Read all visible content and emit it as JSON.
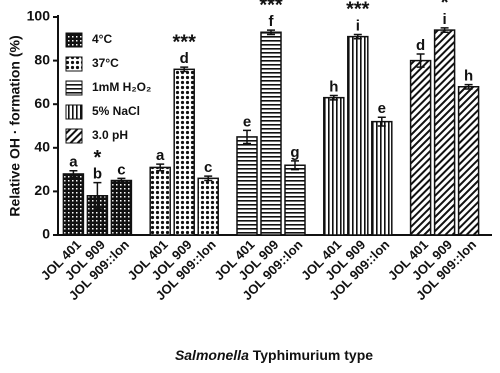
{
  "chart_data": {
    "type": "bar",
    "y_label": "Relative OH · formation (%)",
    "x_label": {
      "italic": "Salmonella",
      "rest": "Typhimurium  type"
    },
    "categories": [
      "JOL 401",
      "JOL 909",
      "JOL 909::lon"
    ],
    "ylim": [
      0,
      100
    ],
    "yticks": [
      0,
      20,
      40,
      60,
      80,
      100
    ],
    "legend": "top-left",
    "series": [
      {
        "name": "4°C",
        "pattern": "checker",
        "values": [
          28,
          18,
          25
        ],
        "errors": [
          1.5,
          6,
          1
        ],
        "letters": [
          "a",
          "b",
          "c"
        ],
        "significance": "*"
      },
      {
        "name": "37°C",
        "pattern": "dots",
        "values": [
          31,
          76,
          26
        ],
        "errors": [
          1.5,
          1,
          1
        ],
        "letters": [
          "a",
          "d",
          "c"
        ],
        "significance": "***"
      },
      {
        "name": "1mM H₂O₂",
        "pattern": "horizontal",
        "values": [
          45,
          93,
          32
        ],
        "errors": [
          3,
          1,
          2
        ],
        "letters": [
          "e",
          "f",
          "g"
        ],
        "significance": "***"
      },
      {
        "name": "5%  NaCl",
        "pattern": "vertical",
        "values": [
          63,
          91,
          52
        ],
        "errors": [
          1,
          1,
          2
        ],
        "letters": [
          "h",
          "i",
          "e"
        ],
        "significance": "***"
      },
      {
        "name": "3.0 pH",
        "pattern": "diagonal",
        "values": [
          80,
          94,
          68
        ],
        "errors": [
          3,
          1,
          1
        ],
        "letters": [
          "d",
          "i",
          "h"
        ],
        "significance": "*"
      }
    ]
  }
}
